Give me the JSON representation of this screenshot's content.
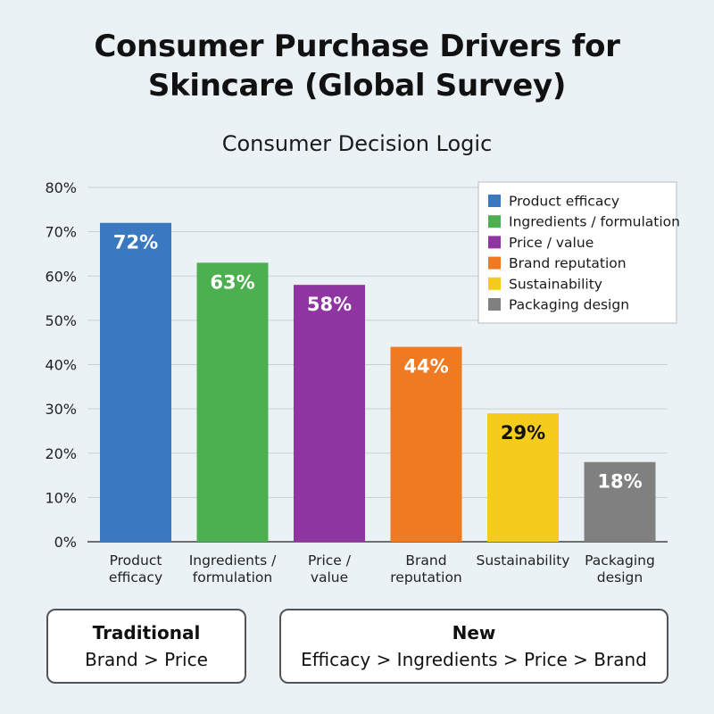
{
  "chart_data": {
    "type": "bar",
    "title": "Consumer Purchase Drivers for\nSkincare (Global Survey)",
    "subtitle": "Consumer Decision Logic",
    "categories": [
      "Product efficacy",
      "Ingredients / formulation",
      "Price / value",
      "Brand reputation",
      "Sustainability",
      "Packaging design"
    ],
    "category_tick_lines": [
      [
        "Product",
        "efficacy"
      ],
      [
        "Ingredients /",
        "formulation"
      ],
      [
        "Price /",
        "value"
      ],
      [
        "Brand",
        "reputation"
      ],
      [
        "Sustainability"
      ],
      [
        "Packaging",
        "design"
      ]
    ],
    "values": [
      72,
      63,
      58,
      44,
      29,
      18
    ],
    "value_labels": [
      "72%",
      "63%",
      "58%",
      "44%",
      "29%",
      "18%"
    ],
    "colors": [
      "#3a78c0",
      "#4caf50",
      "#8e35a2",
      "#ef7a22",
      "#f5cc1c",
      "#808080"
    ],
    "value_label_colors": [
      "#ffffff",
      "#ffffff",
      "#ffffff",
      "#ffffff",
      "#111111",
      "#ffffff"
    ],
    "ylim": [
      0,
      80
    ],
    "yticks": [
      0,
      10,
      20,
      30,
      40,
      50,
      60,
      70,
      80
    ],
    "ytick_labels": [
      "0%",
      "10%",
      "20%",
      "30%",
      "40%",
      "50%",
      "60%",
      "70%",
      "80%"
    ],
    "xlabel": "",
    "ylabel": "",
    "grid": true,
    "legend_position": "top-right",
    "legend": [
      "Product efficacy",
      "Ingredients / formulation",
      "Price / value",
      "Brand reputation",
      "Sustainability",
      "Packaging design"
    ]
  },
  "comparison": {
    "traditional": {
      "heading": "Traditional",
      "text": "Brand > Price"
    },
    "new": {
      "heading": "New",
      "text": "Efficacy > Ingredients > Price > Brand"
    }
  }
}
